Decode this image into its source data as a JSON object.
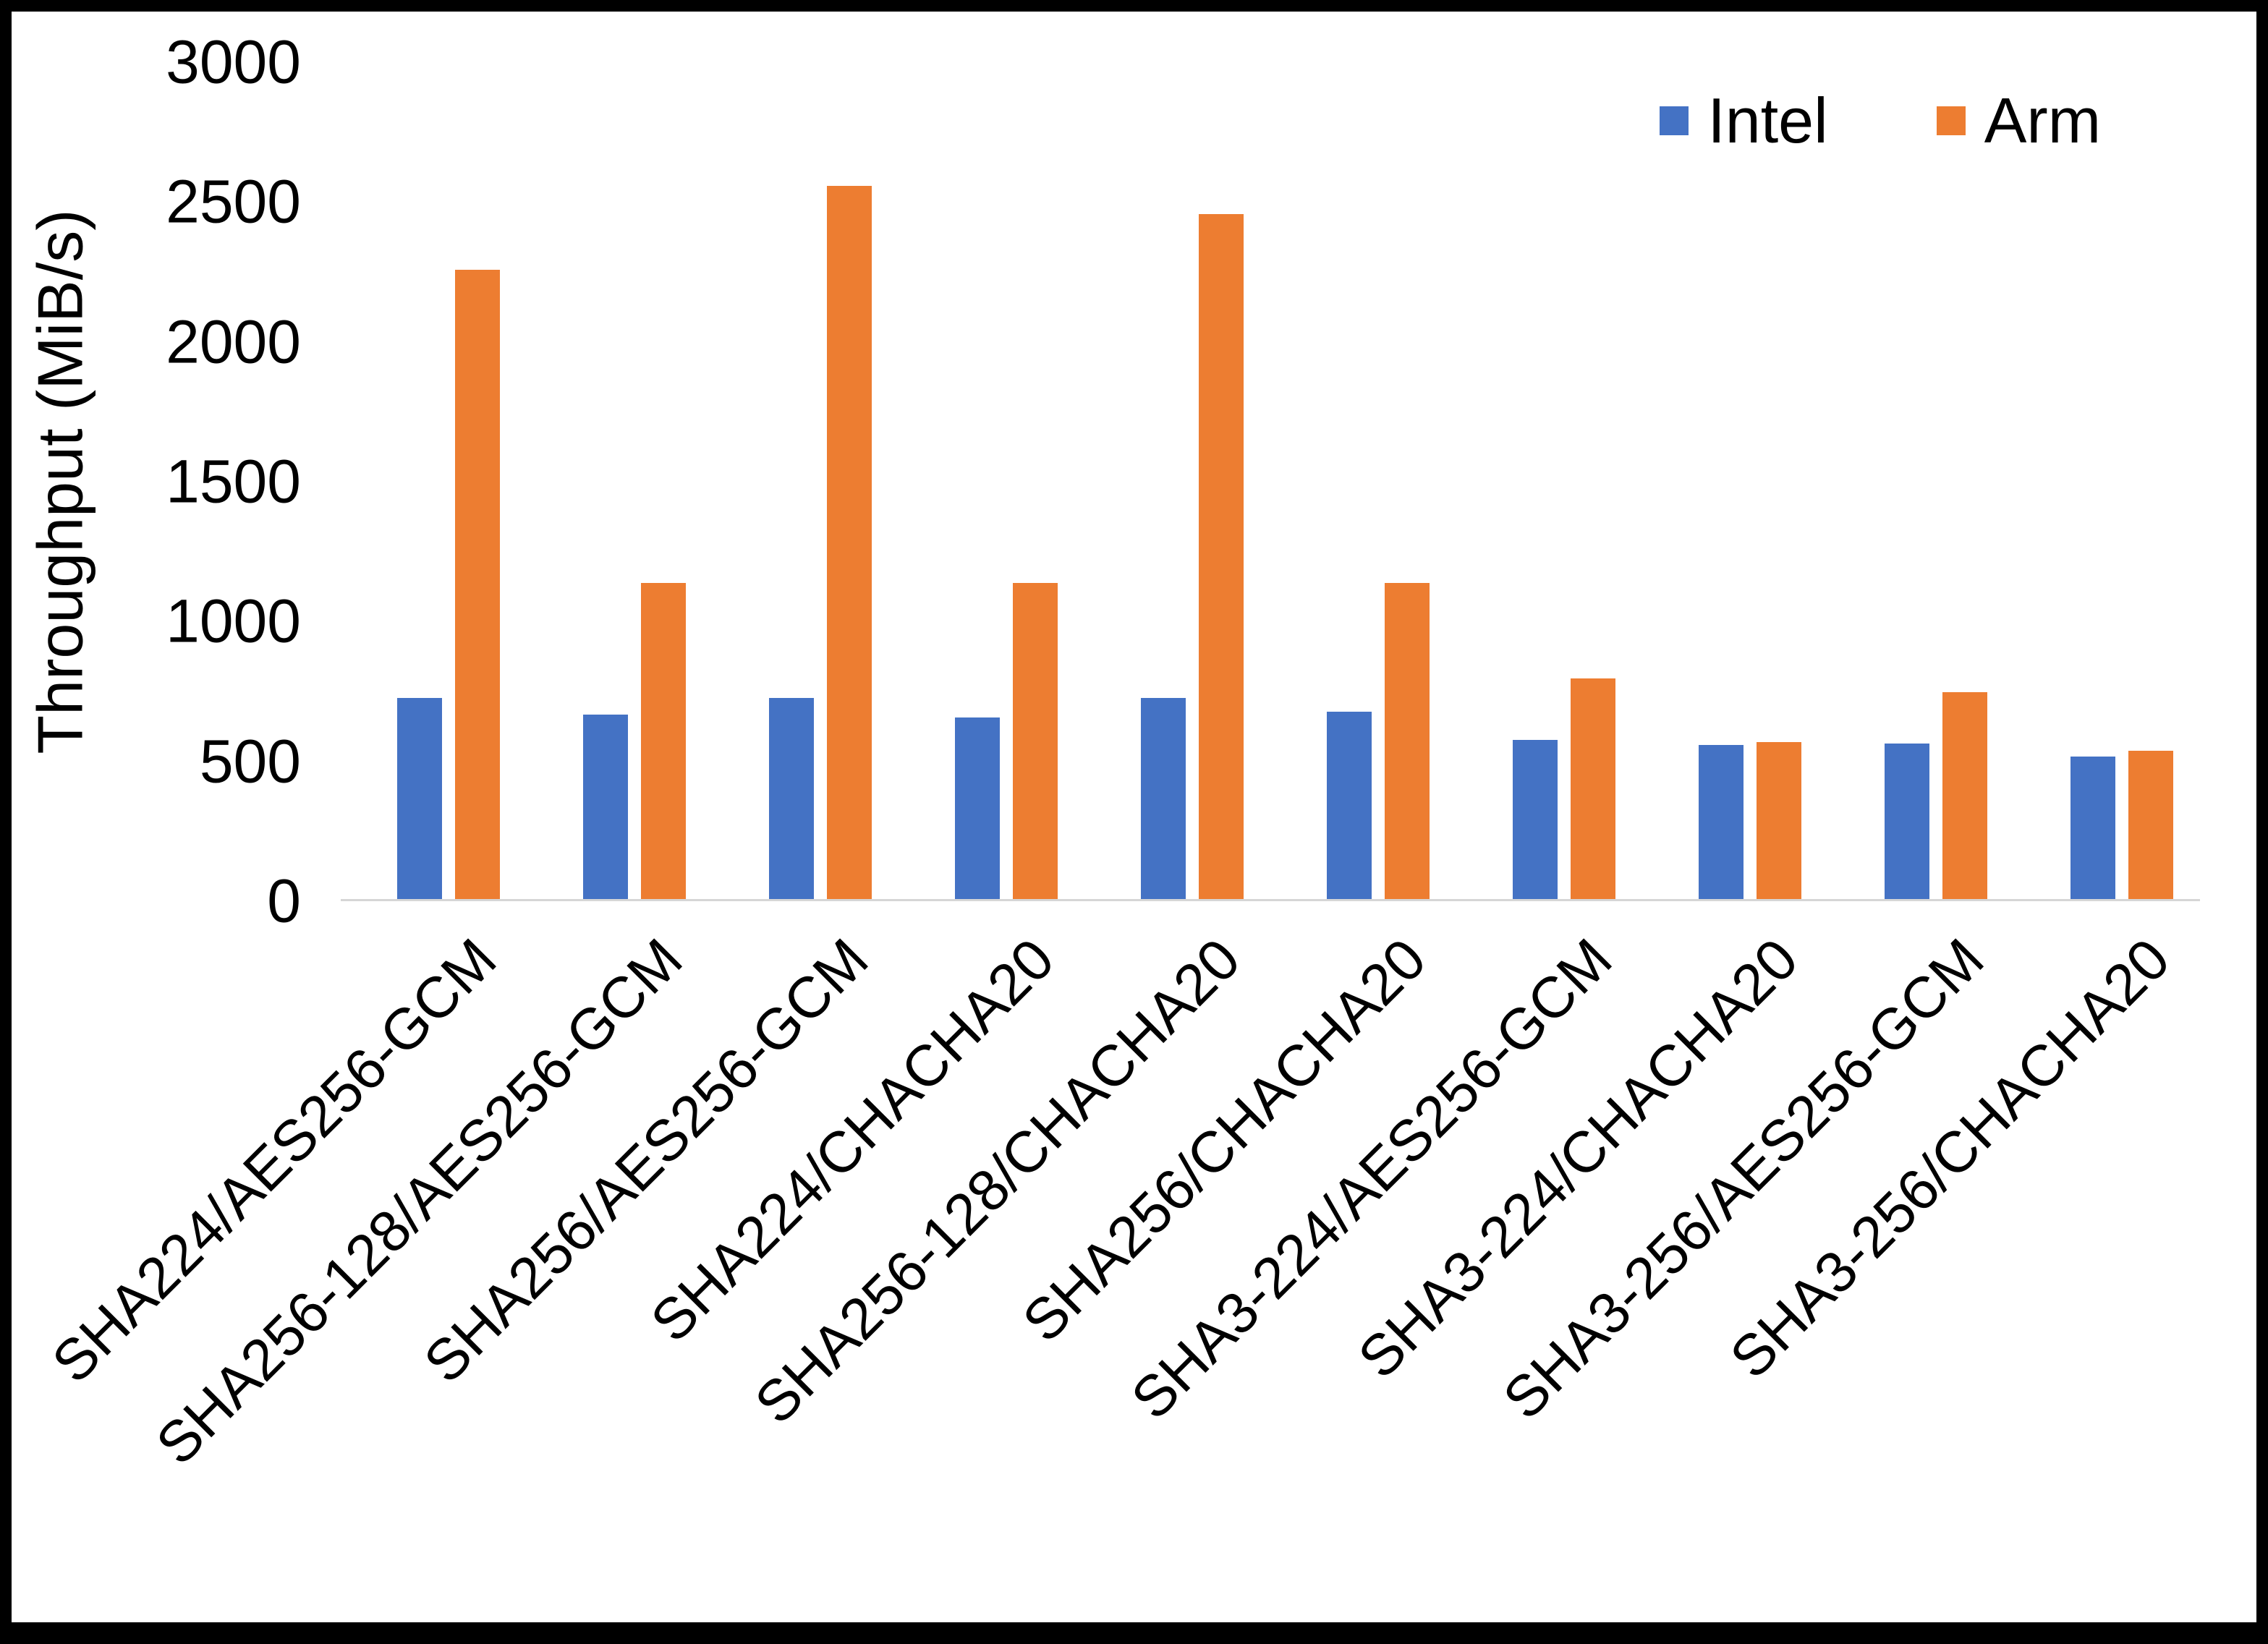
{
  "figure": {
    "background": "#ffffff",
    "border_color": "#000000",
    "axis_line_color": "#d6d6d6"
  },
  "chart_data": {
    "type": "bar",
    "title": "",
    "xlabel": "",
    "ylabel": "Throughput (MiB/s)",
    "ylim": [
      0,
      3000
    ],
    "ytick_interval": 500,
    "yticks": [
      "0",
      "500",
      "1000",
      "1500",
      "2000",
      "2500",
      "3000"
    ],
    "grid": false,
    "legend_position": "top-right",
    "categories": [
      "SHA224/AES256-GCM",
      "SHA256-128/AES256-GCM",
      "SHA256/AES256-GCM",
      "SHA224/CHACHA20",
      "SHA256-128/CHACHA20",
      "SHA256/CHACHA20",
      "SHA3-224/AES256-GCM",
      "SHA3-224/CHACHA20",
      "SHA3-256/AES256-GCM",
      "SHA3-256/CHACHA20"
    ],
    "series": [
      {
        "name": "Intel",
        "color": "#4472C4",
        "values": [
          720,
          660,
          720,
          650,
          720,
          670,
          570,
          550,
          555,
          510
        ]
      },
      {
        "name": "Arm",
        "color": "#ED7D31",
        "values": [
          2250,
          1130,
          2550,
          1130,
          2450,
          1130,
          790,
          560,
          740,
          530
        ]
      }
    ]
  }
}
